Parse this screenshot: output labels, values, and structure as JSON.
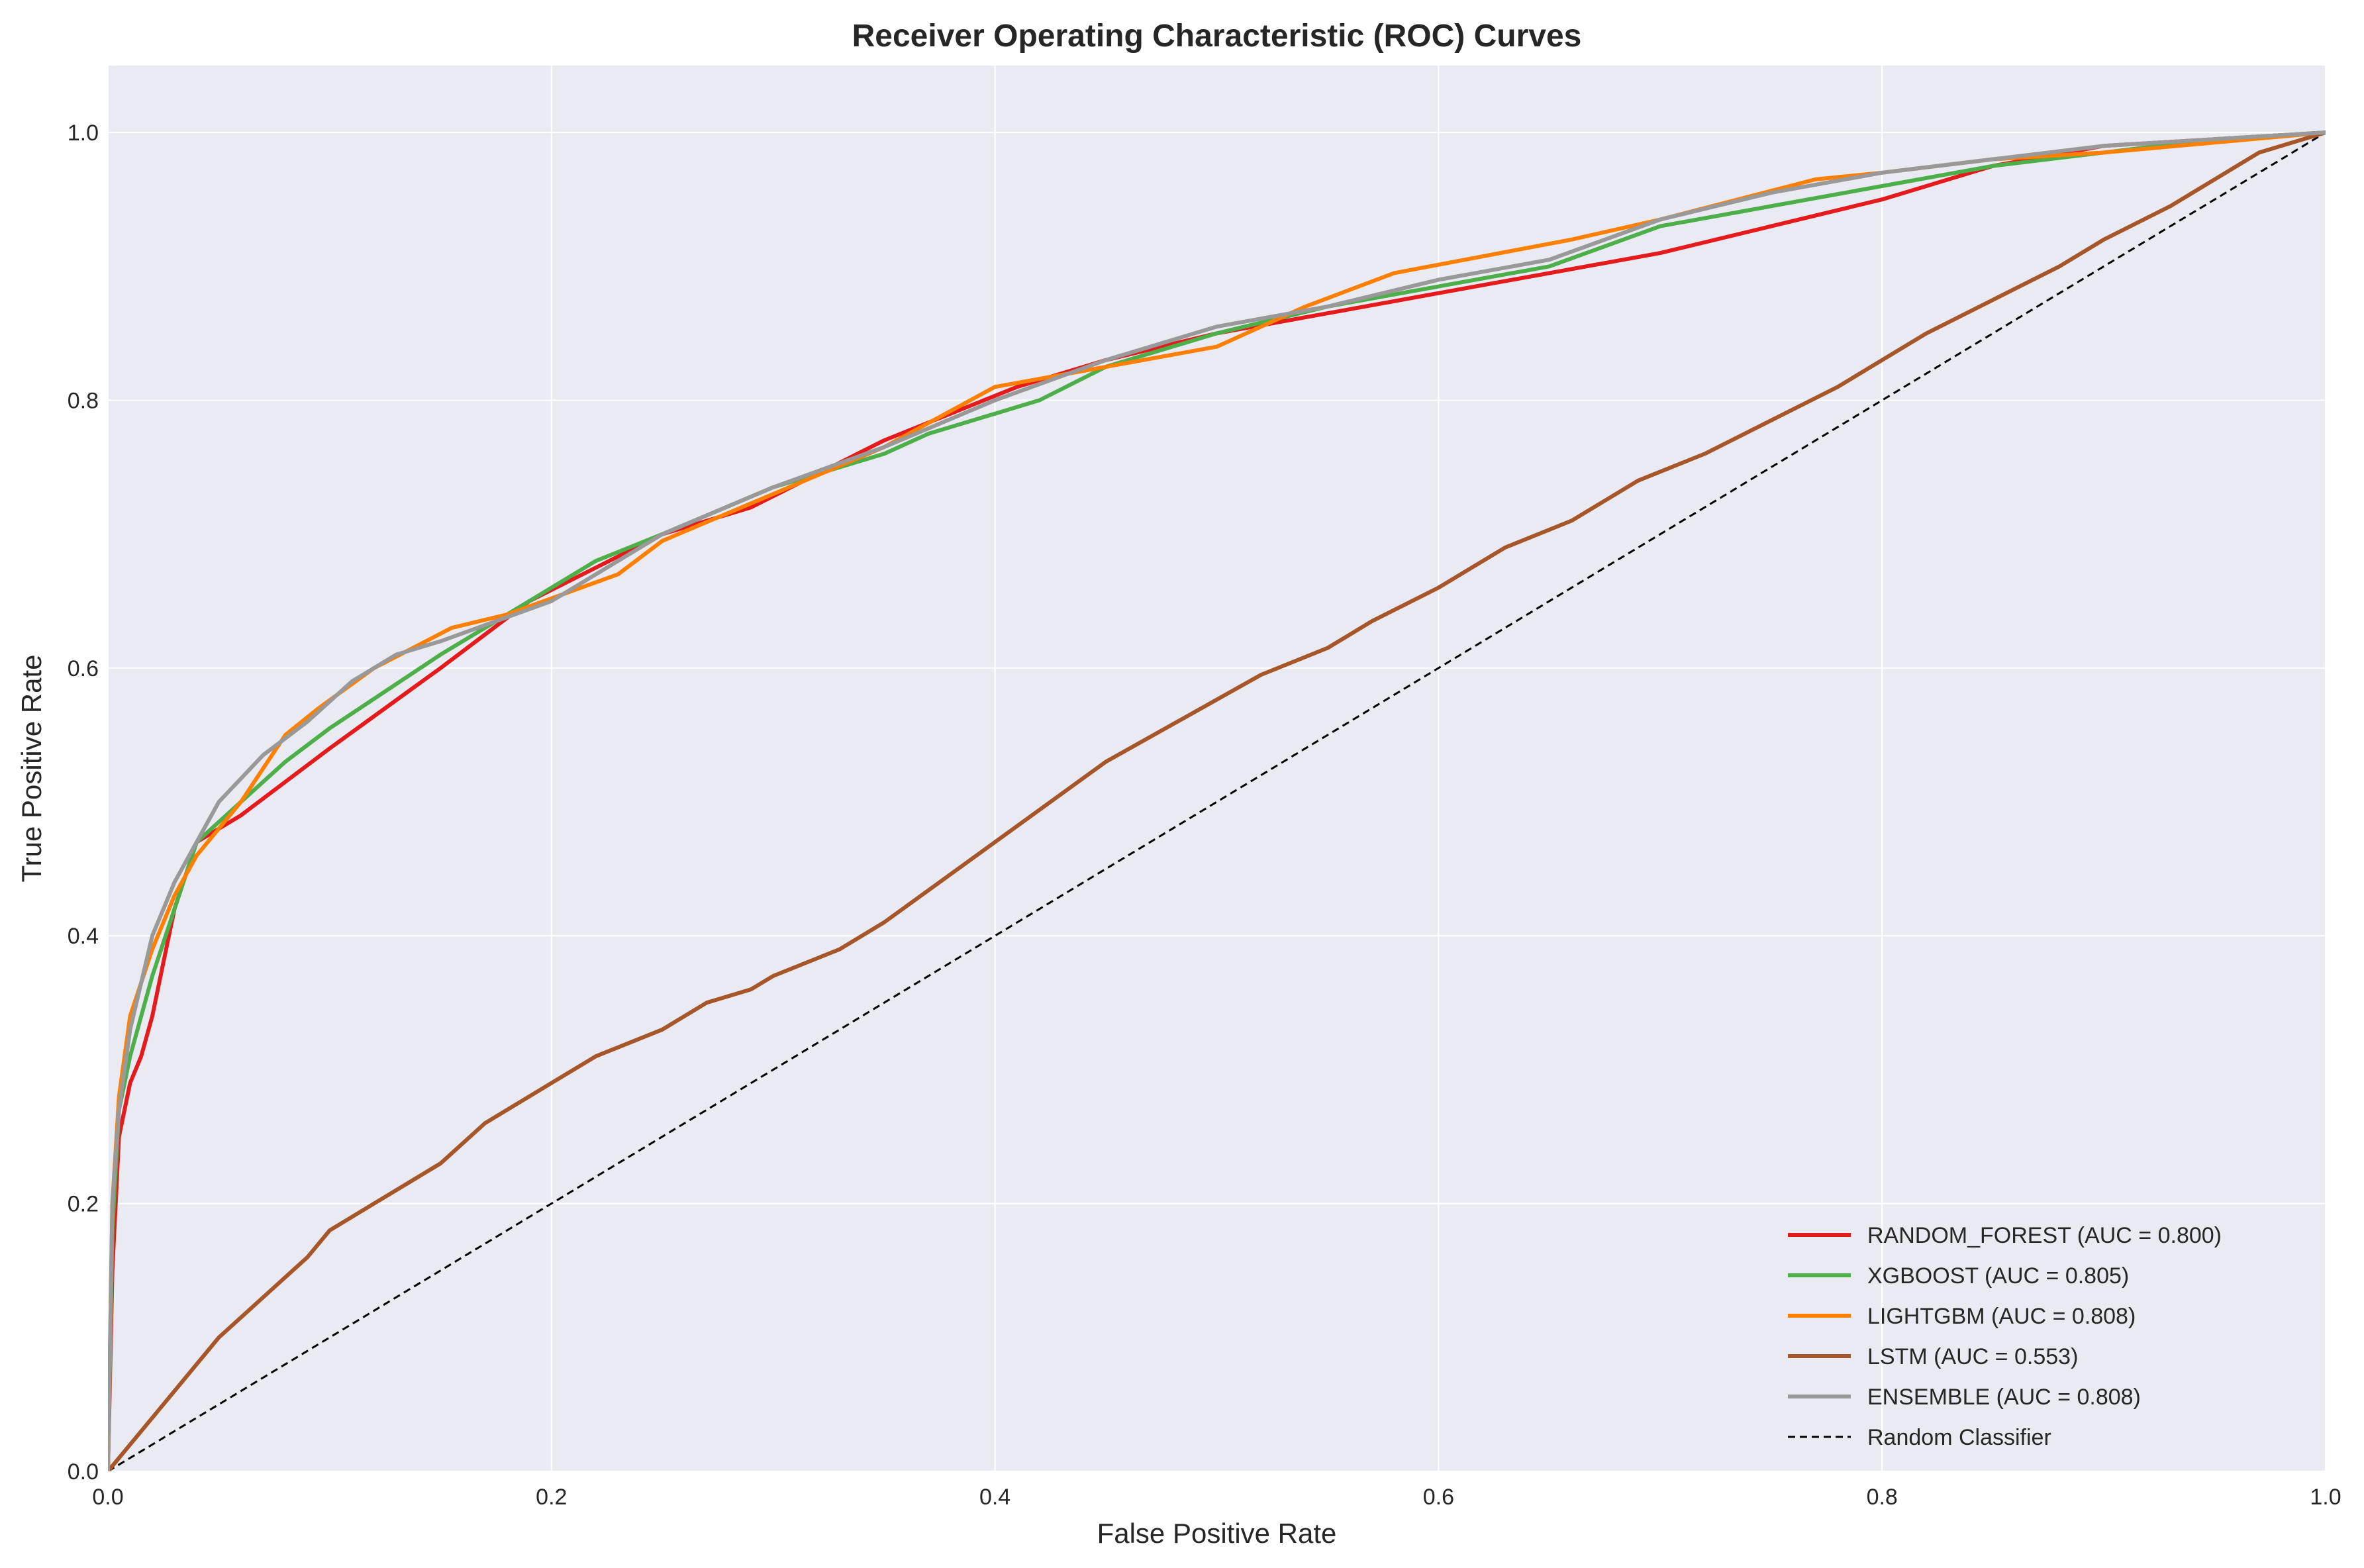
{
  "chart_data": {
    "type": "line",
    "title": "Receiver Operating Characteristic (ROC) Curves",
    "xlabel": "False Positive Rate",
    "ylabel": "True Positive Rate",
    "xlim": [
      0.0,
      1.0
    ],
    "ylim": [
      0.0,
      1.05
    ],
    "xticks": [
      "0.0",
      "0.2",
      "0.4",
      "0.6",
      "0.8",
      "1.0"
    ],
    "yticks": [
      "0.0",
      "0.2",
      "0.4",
      "0.6",
      "0.8",
      "1.0"
    ],
    "xtick_values": [
      0.0,
      0.2,
      0.4,
      0.6,
      0.8,
      1.0
    ],
    "ytick_values": [
      0.0,
      0.2,
      0.4,
      0.6,
      0.8,
      1.0
    ],
    "grid": true,
    "legend_position": "bottom-right",
    "series": [
      {
        "name": "RANDOM_FOREST (AUC = 0.800)",
        "color": "#e41a1c",
        "dashed": false,
        "x": [
          0.0,
          0.002,
          0.005,
          0.01,
          0.015,
          0.02,
          0.025,
          0.03,
          0.04,
          0.06,
          0.1,
          0.15,
          0.19,
          0.25,
          0.29,
          0.35,
          0.41,
          0.45,
          0.5,
          0.55,
          0.6,
          0.7,
          0.8,
          0.85,
          0.9,
          0.95,
          1.0
        ],
        "y": [
          0.0,
          0.15,
          0.25,
          0.29,
          0.31,
          0.34,
          0.38,
          0.42,
          0.47,
          0.49,
          0.54,
          0.6,
          0.65,
          0.7,
          0.72,
          0.77,
          0.81,
          0.83,
          0.85,
          0.865,
          0.88,
          0.91,
          0.95,
          0.975,
          0.99,
          0.995,
          1.0
        ]
      },
      {
        "name": "XGBOOST (AUC = 0.805)",
        "color": "#4daf4a",
        "dashed": false,
        "x": [
          0.0,
          0.002,
          0.005,
          0.01,
          0.02,
          0.03,
          0.04,
          0.06,
          0.08,
          0.1,
          0.15,
          0.19,
          0.22,
          0.25,
          0.3,
          0.35,
          0.37,
          0.42,
          0.45,
          0.5,
          0.55,
          0.6,
          0.65,
          0.7,
          0.8,
          0.85,
          0.9,
          0.95,
          1.0
        ],
        "y": [
          0.0,
          0.18,
          0.27,
          0.31,
          0.37,
          0.42,
          0.47,
          0.5,
          0.53,
          0.555,
          0.61,
          0.65,
          0.68,
          0.7,
          0.735,
          0.76,
          0.775,
          0.8,
          0.825,
          0.85,
          0.87,
          0.885,
          0.9,
          0.93,
          0.96,
          0.975,
          0.985,
          0.995,
          1.0
        ]
      },
      {
        "name": "LIGHTGBM (AUC = 0.808)",
        "color": "#ff7f00",
        "dashed": false,
        "x": [
          0.0,
          0.002,
          0.005,
          0.01,
          0.02,
          0.03,
          0.04,
          0.06,
          0.08,
          0.095,
          0.12,
          0.155,
          0.18,
          0.23,
          0.25,
          0.3,
          0.35,
          0.4,
          0.5,
          0.54,
          0.58,
          0.66,
          0.7,
          0.77,
          0.8,
          0.85,
          0.9,
          1.0
        ],
        "y": [
          0.0,
          0.2,
          0.28,
          0.34,
          0.39,
          0.43,
          0.46,
          0.5,
          0.55,
          0.57,
          0.6,
          0.63,
          0.64,
          0.67,
          0.695,
          0.73,
          0.765,
          0.81,
          0.84,
          0.87,
          0.895,
          0.92,
          0.935,
          0.965,
          0.97,
          0.98,
          0.985,
          1.0
        ]
      },
      {
        "name": "LSTM (AUC = 0.553)",
        "color": "#a65628",
        "dashed": false,
        "x": [
          0.0,
          0.01,
          0.02,
          0.03,
          0.05,
          0.07,
          0.09,
          0.1,
          0.12,
          0.15,
          0.17,
          0.18,
          0.2,
          0.22,
          0.25,
          0.27,
          0.29,
          0.3,
          0.33,
          0.35,
          0.4,
          0.45,
          0.52,
          0.55,
          0.57,
          0.6,
          0.63,
          0.66,
          0.69,
          0.72,
          0.75,
          0.78,
          0.8,
          0.82,
          0.85,
          0.88,
          0.9,
          0.93,
          0.95,
          0.97,
          1.0
        ],
        "y": [
          0.0,
          0.02,
          0.04,
          0.06,
          0.1,
          0.13,
          0.16,
          0.18,
          0.2,
          0.23,
          0.26,
          0.27,
          0.29,
          0.31,
          0.33,
          0.35,
          0.36,
          0.37,
          0.39,
          0.41,
          0.47,
          0.53,
          0.595,
          0.615,
          0.635,
          0.66,
          0.69,
          0.71,
          0.74,
          0.76,
          0.785,
          0.81,
          0.83,
          0.85,
          0.875,
          0.9,
          0.92,
          0.945,
          0.965,
          0.985,
          1.0
        ]
      },
      {
        "name": "ENSEMBLE (AUC = 0.808)",
        "color": "#999999",
        "dashed": false,
        "x": [
          0.0,
          0.002,
          0.005,
          0.01,
          0.02,
          0.03,
          0.04,
          0.05,
          0.07,
          0.09,
          0.11,
          0.13,
          0.15,
          0.2,
          0.25,
          0.3,
          0.35,
          0.4,
          0.45,
          0.5,
          0.55,
          0.6,
          0.65,
          0.7,
          0.75,
          0.8,
          0.85,
          0.9,
          0.95,
          1.0
        ],
        "y": [
          0.0,
          0.2,
          0.27,
          0.33,
          0.4,
          0.44,
          0.47,
          0.5,
          0.535,
          0.56,
          0.59,
          0.61,
          0.62,
          0.65,
          0.7,
          0.735,
          0.765,
          0.8,
          0.83,
          0.855,
          0.87,
          0.89,
          0.905,
          0.935,
          0.955,
          0.97,
          0.98,
          0.99,
          0.995,
          1.0
        ]
      },
      {
        "name": "Random Classifier",
        "color": "#000000",
        "dashed": true,
        "x": [
          0.0,
          1.0
        ],
        "y": [
          0.0,
          1.0
        ]
      }
    ]
  }
}
